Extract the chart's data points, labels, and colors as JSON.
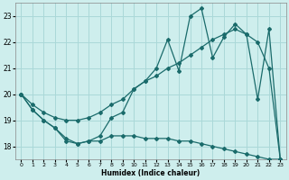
{
  "xlabel": "Humidex (Indice chaleur)",
  "bg_color": "#ceeeed",
  "grid_color": "#aad8d8",
  "line_color": "#1a6b6b",
  "xlim": [
    -0.5,
    23.5
  ],
  "ylim": [
    17.5,
    23.5
  ],
  "yticks": [
    18,
    19,
    20,
    21,
    22,
    23
  ],
  "xticks": [
    0,
    1,
    2,
    3,
    4,
    5,
    6,
    7,
    8,
    9,
    10,
    11,
    12,
    13,
    14,
    15,
    16,
    17,
    18,
    19,
    20,
    21,
    22,
    23
  ],
  "line_zigzag_x": [
    0,
    1,
    2,
    3,
    4,
    5,
    6,
    7,
    8,
    9,
    10,
    11,
    12,
    13,
    14,
    15,
    16,
    17,
    18,
    19,
    20,
    21,
    22,
    23
  ],
  "line_zigzag_y": [
    20.0,
    19.4,
    19.0,
    18.7,
    18.2,
    18.1,
    18.2,
    18.4,
    19.1,
    19.3,
    20.2,
    20.5,
    21.0,
    22.1,
    20.9,
    23.0,
    23.3,
    21.4,
    22.2,
    22.7,
    22.3,
    19.8,
    22.5,
    17.5
  ],
  "line_smooth_x": [
    0,
    1,
    2,
    3,
    4,
    5,
    6,
    7,
    8,
    9,
    10,
    11,
    12,
    13,
    14,
    15,
    16,
    17,
    18,
    19,
    20,
    21,
    22,
    23
  ],
  "line_smooth_y": [
    20.0,
    19.6,
    19.3,
    19.1,
    19.0,
    19.0,
    19.1,
    19.3,
    19.6,
    19.8,
    20.2,
    20.5,
    20.7,
    21.0,
    21.2,
    21.5,
    21.8,
    22.1,
    22.3,
    22.5,
    22.3,
    22.0,
    21.0,
    17.5
  ],
  "line_bottom_x": [
    0,
    1,
    2,
    3,
    4,
    5,
    6,
    7,
    8,
    9,
    10,
    11,
    12,
    13,
    14,
    15,
    16,
    17,
    18,
    19,
    20,
    21,
    22,
    23
  ],
  "line_bottom_y": [
    20.0,
    19.4,
    19.0,
    18.7,
    18.3,
    18.1,
    18.2,
    18.2,
    18.4,
    18.4,
    18.4,
    18.3,
    18.3,
    18.3,
    18.2,
    18.2,
    18.1,
    18.0,
    17.9,
    17.8,
    17.7,
    17.6,
    17.5,
    17.5
  ]
}
